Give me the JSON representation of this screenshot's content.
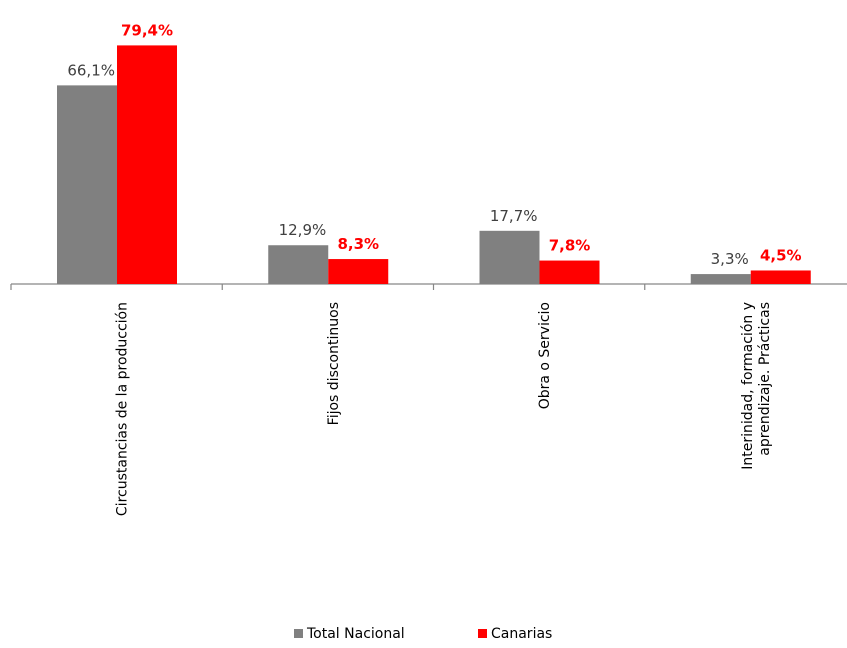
{
  "chart_data": {
    "type": "bar",
    "categories": [
      [
        "Circustancias de la producción"
      ],
      [
        "Fijos discontinuos"
      ],
      [
        "Obra o Servicio"
      ],
      [
        "Interinidad, formación y",
        "aprendizaje. Prácticas"
      ]
    ],
    "series": [
      {
        "name": "Total Nacional",
        "color": "#808080",
        "values": [
          66.1,
          12.9,
          17.7,
          3.3
        ],
        "labels": [
          "66,1%",
          "12,9%",
          "17,7%",
          "3,3%"
        ]
      },
      {
        "name": "Canarias",
        "color": "#ff0000",
        "values": [
          79.4,
          8.3,
          7.8,
          4.5
        ],
        "labels": [
          "79,4%",
          "8,3%",
          "7,8%",
          "4,5%"
        ]
      }
    ],
    "ylim": [
      0,
      80
    ],
    "grid": false,
    "legend": "bottom"
  }
}
